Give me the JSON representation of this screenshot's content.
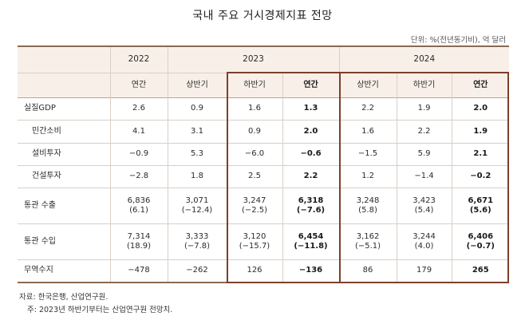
{
  "title": "국내 주요 거시경제지표 전망",
  "unit_note": "단위: %(전년동기비), 억 달러",
  "years": {
    "y2022": "2022",
    "y2023": "2023",
    "y2024": "2024"
  },
  "subheaders": [
    "연간",
    "상반기",
    "하반기",
    "연간",
    "상반기",
    "하반기",
    "연간"
  ],
  "rows": [
    {
      "label": "실질GDP",
      "values": [
        "2.6",
        "0.9",
        "1.6",
        "1.3",
        "2.2",
        "1.9",
        "2.0"
      ]
    },
    {
      "label": "민간소비",
      "values": [
        "4.1",
        "3.1",
        "0.9",
        "2.0",
        "1.6",
        "2.2",
        "1.9"
      ]
    },
    {
      "label": "설비투자",
      "values": [
        "−0.9",
        "5.3",
        "−6.0",
        "−0.6",
        "−1.5",
        "5.9",
        "2.1"
      ]
    },
    {
      "label": "건설투자",
      "values": [
        "−2.8",
        "1.8",
        "2.5",
        "2.2",
        "1.2",
        "−1.4",
        "−0.2"
      ]
    },
    {
      "label": "통관 수출",
      "values": [
        "6,836",
        "3,071",
        "3,247",
        "6,318",
        "3,248",
        "3,423",
        "6,671"
      ],
      "sub": [
        "(6.1)",
        "(−12.4)",
        "(−2.5)",
        "(−7.6)",
        "(5.8)",
        "(5.4)",
        "(5.6)"
      ]
    },
    {
      "label": "통관 수입",
      "values": [
        "7,314",
        "3,333",
        "3,120",
        "6,454",
        "3,162",
        "3,244",
        "6,406"
      ],
      "sub": [
        "(18.9)",
        "(−7.8)",
        "(−15.7)",
        "(−11.8)",
        "(−5.1)",
        "(4.0)",
        "(−0.7)"
      ]
    },
    {
      "label": "무역수지",
      "values": [
        "−478",
        "−262",
        "126",
        "−136",
        "86",
        "179",
        "265"
      ]
    }
  ],
  "source": "자료: 한국은행, 산업연구원.",
  "note": "주: 2023년 하반기부터는 산업연구원 전망치.",
  "colors": {
    "frame": "#7d3f2a",
    "header_bg": "#f8f0e8",
    "grid": "#d9cfc6"
  }
}
